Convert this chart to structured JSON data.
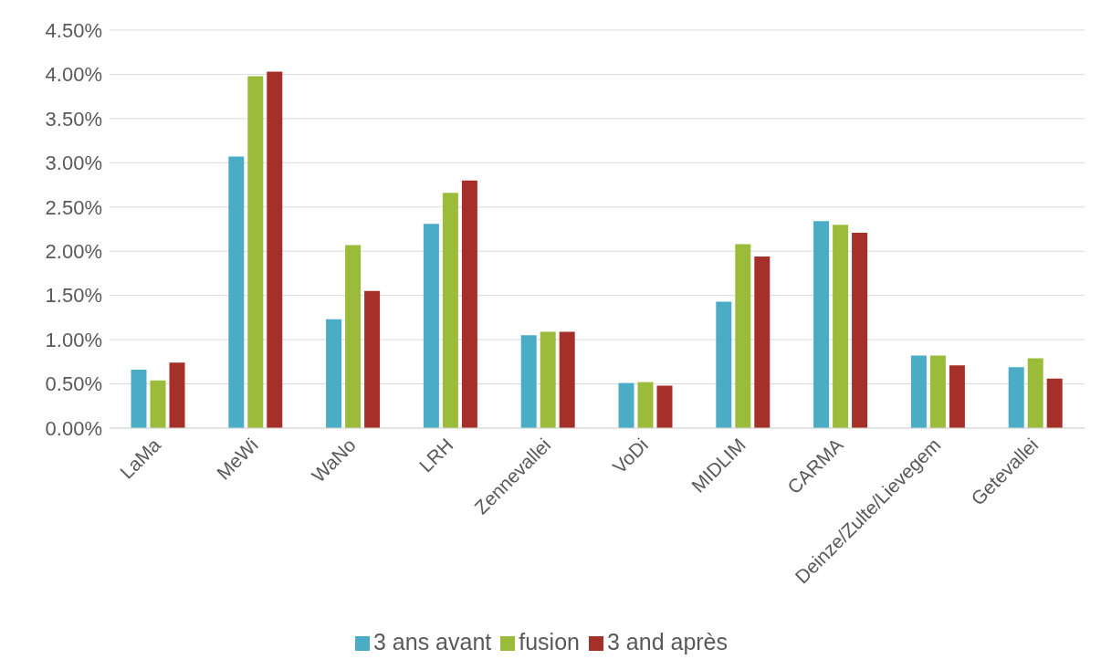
{
  "chart_data": {
    "type": "bar",
    "categories": [
      "LaMa",
      "MeWi",
      "WaNo",
      "LRH",
      "Zennevallei",
      "VoDi",
      "MIDLIM",
      "CARMA",
      "Deinze/Zulte/Lievegem",
      "Getevallei"
    ],
    "series": [
      {
        "name": "3 ans avant",
        "color": "#4bacc6",
        "values": [
          0.66,
          3.07,
          1.23,
          2.31,
          1.05,
          0.51,
          1.43,
          2.34,
          0.82,
          0.69
        ]
      },
      {
        "name": "fusion",
        "color": "#9bbb3b",
        "values": [
          0.54,
          3.98,
          2.07,
          2.66,
          1.09,
          0.52,
          2.08,
          2.3,
          0.82,
          0.79
        ]
      },
      {
        "name": "3 and après",
        "color": "#a5302a",
        "values": [
          0.74,
          4.03,
          1.55,
          2.8,
          1.09,
          0.48,
          1.94,
          2.21,
          0.71,
          0.56
        ]
      }
    ],
    "ylim": [
      0,
      4.5
    ],
    "yticks": [
      {
        "value": 0,
        "label": "0.00%"
      },
      {
        "value": 0.5,
        "label": "0.50%"
      },
      {
        "value": 1,
        "label": "1.00%"
      },
      {
        "value": 1.5,
        "label": "1.50%"
      },
      {
        "value": 2,
        "label": "2.00%"
      },
      {
        "value": 2.5,
        "label": "2.50%"
      },
      {
        "value": 3,
        "label": "3.00%"
      },
      {
        "value": 3.5,
        "label": "3.50%"
      },
      {
        "value": 4,
        "label": "4.00%"
      },
      {
        "value": 4.5,
        "label": "4.50%"
      }
    ],
    "grid": "y",
    "legend": "bottom"
  }
}
